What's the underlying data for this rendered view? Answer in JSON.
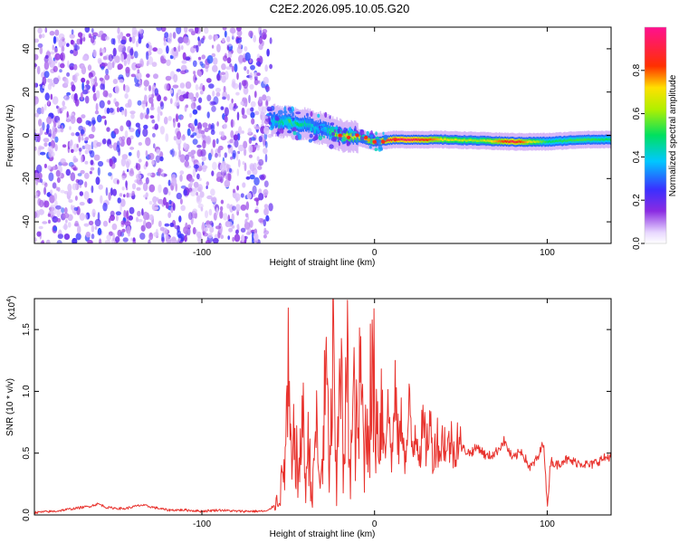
{
  "title": "C2E2.2026.095.10.05.G20",
  "chart_data": [
    {
      "type": "heatmap",
      "xlabel": "Height of straight line (km)",
      "ylabel": "Frequency (Hz)",
      "xlim": [
        -197,
        137
      ],
      "ylim": [
        -50,
        50
      ],
      "xticks": [
        -100,
        0,
        100
      ],
      "xtick_labels": [
        "-100",
        "0",
        "100"
      ],
      "yticks": [
        -40,
        -20,
        0,
        20,
        40
      ],
      "ytick_labels": [
        "-40",
        "-20",
        "0",
        "20",
        "40"
      ],
      "colorbar": {
        "label": "Normalized spectral amplitude",
        "range": [
          0,
          1
        ],
        "ticks": [
          0.0,
          0.2,
          0.4,
          0.6,
          0.8
        ],
        "tick_labels": [
          "0.0",
          "0.2",
          "0.4",
          "0.6",
          "0.8"
        ],
        "colormap": "rainbow (purple-blue-cyan-green-yellow-red-magenta)"
      },
      "noise_region_x": [
        -197,
        -60
      ],
      "signal_track": [
        {
          "x": -60,
          "freq": 7,
          "amp": 0.4
        },
        {
          "x": -50,
          "freq": 6,
          "amp": 0.55
        },
        {
          "x": -40,
          "freq": 5,
          "amp": 0.45
        },
        {
          "x": -30,
          "freq": 3,
          "amp": 0.35
        },
        {
          "x": -20,
          "freq": 0,
          "amp": 0.75
        },
        {
          "x": -10,
          "freq": -1,
          "amp": 0.7
        },
        {
          "x": 0,
          "freq": -3,
          "amp": 0.8
        },
        {
          "x": 10,
          "freq": -2,
          "amp": 0.9
        },
        {
          "x": 20,
          "freq": -2,
          "amp": 0.95
        },
        {
          "x": 40,
          "freq": -2,
          "amp": 0.7
        },
        {
          "x": 60,
          "freq": -2.5,
          "amp": 0.6
        },
        {
          "x": 80,
          "freq": -3,
          "amp": 0.9
        },
        {
          "x": 100,
          "freq": -3,
          "amp": 0.5
        },
        {
          "x": 120,
          "freq": -2,
          "amp": 0.55
        },
        {
          "x": 137,
          "freq": -2,
          "amp": 0.5
        }
      ]
    },
    {
      "type": "line",
      "xlabel": "Height of straight line (km)",
      "ylabel": "SNR (10 * v/v)",
      "scale_label": "(x10",
      "scale_exp": "4",
      "xlim": [
        -197,
        137
      ],
      "ylim": [
        0,
        1.75
      ],
      "xticks": [
        -100,
        0,
        100
      ],
      "xtick_labels": [
        "-100",
        "0",
        "100"
      ],
      "yticks": [
        0.0,
        0.5,
        1.0,
        1.5
      ],
      "ytick_labels": [
        "0.0",
        "0.5",
        "1.0",
        "1.5"
      ],
      "color": "#e8332e",
      "series": [
        {
          "x": [
            -197,
            -185,
            -175,
            -165,
            -160,
            -155,
            -145,
            -135,
            -120,
            -110,
            -100,
            -90,
            -80,
            -70,
            -62,
            -58,
            -55,
            -52,
            -50,
            -48,
            -46,
            -44,
            -42,
            -40,
            -38,
            -36,
            -34,
            -32,
            -30,
            -28,
            -26,
            -24,
            -22,
            -20,
            -18,
            -16,
            -14,
            -12,
            -10,
            -8,
            -6,
            -4,
            -2,
            0,
            2,
            4,
            6,
            8,
            10,
            12,
            14,
            16,
            18,
            20,
            22,
            24,
            26,
            28,
            30,
            32,
            34,
            36,
            38,
            40,
            42,
            44,
            46,
            48,
            50,
            55,
            60,
            65,
            70,
            75,
            80,
            85,
            90,
            95,
            98,
            100,
            102,
            105,
            110,
            115,
            120,
            125,
            130,
            137
          ],
          "y": [
            0.02,
            0.03,
            0.05,
            0.07,
            0.09,
            0.06,
            0.05,
            0.08,
            0.04,
            0.04,
            0.03,
            0.04,
            0.03,
            0.03,
            0.03,
            0.08,
            0.15,
            0.4,
            1.0,
            0.3,
            0.7,
            0.2,
            0.9,
            0.25,
            0.6,
            0.1,
            0.8,
            0.2,
            0.5,
            1.1,
            0.3,
            1.3,
            0.1,
            1.75,
            0.2,
            1.2,
            0.4,
            0.9,
            0.6,
            1.1,
            0.5,
            0.8,
            1.0,
            1.0,
            0.7,
            0.9,
            0.6,
            0.85,
            0.45,
            0.95,
            0.55,
            0.8,
            0.4,
            0.85,
            0.5,
            0.75,
            0.5,
            0.7,
            0.55,
            0.75,
            0.45,
            0.65,
            0.5,
            0.65,
            0.5,
            0.62,
            0.5,
            0.65,
            0.55,
            0.5,
            0.55,
            0.47,
            0.5,
            0.6,
            0.45,
            0.52,
            0.38,
            0.47,
            0.6,
            0.05,
            0.45,
            0.4,
            0.45,
            0.43,
            0.42,
            0.4,
            0.44,
            0.48
          ]
        }
      ]
    }
  ]
}
